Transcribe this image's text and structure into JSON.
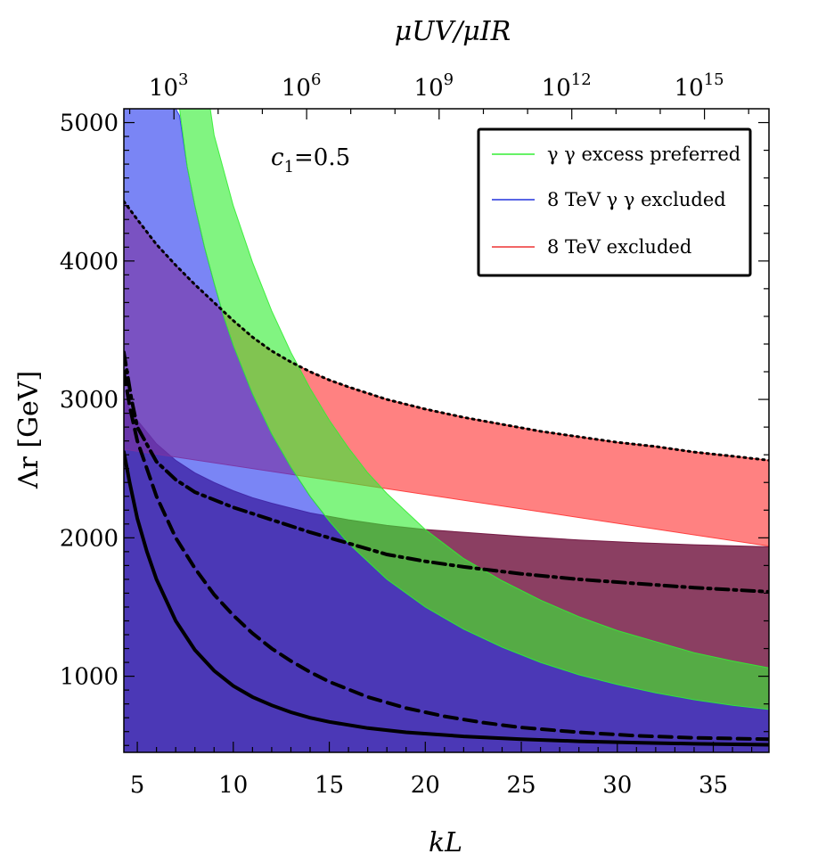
{
  "chart_data": {
    "type": "area",
    "title": "",
    "xlabel": "kL",
    "ylabel": "Λr [GeV]",
    "top_xlabel": "μUV/μIR",
    "xlim": [
      4.3,
      37.9
    ],
    "ylim": [
      450,
      5100
    ],
    "xticks": [
      5,
      10,
      15,
      20,
      25,
      30,
      35
    ],
    "yticks": [
      1000,
      2000,
      3000,
      4000,
      5000
    ],
    "top_ticks": [
      {
        "kL": 6.91,
        "base": "10",
        "exp": "3"
      },
      {
        "kL": 13.82,
        "base": "10",
        "exp": "6"
      },
      {
        "kL": 20.72,
        "base": "10",
        "exp": "9"
      },
      {
        "kL": 27.63,
        "base": "10",
        "exp": "12"
      },
      {
        "kL": 34.54,
        "base": "10",
        "exp": "15"
      }
    ],
    "annotation": {
      "text": "c1=0.5",
      "base": "c",
      "sub": "1",
      "rest": "=0.5"
    },
    "legend": {
      "position": "top-right",
      "entries": [
        {
          "label": "γ γ excess preferred",
          "color": "#33ee33"
        },
        {
          "label": "8 TeV γ γ excluded",
          "color": "#2233dd"
        },
        {
          "label": "8 TeV excluded",
          "color": "#ee3333"
        }
      ]
    },
    "regions": [
      {
        "id": "purple-band",
        "fill": "#6e0f3b",
        "opacity": 0.8,
        "upper": [
          [
            4.3,
            3000
          ],
          [
            5,
            2850
          ],
          [
            6,
            2680
          ],
          [
            7,
            2560
          ],
          [
            8,
            2470
          ],
          [
            9,
            2400
          ],
          [
            10,
            2340
          ],
          [
            11,
            2290
          ],
          [
            12,
            2250
          ],
          [
            14,
            2180
          ],
          [
            16,
            2130
          ],
          [
            18,
            2090
          ],
          [
            20,
            2060
          ],
          [
            22,
            2040
          ],
          [
            25,
            2010
          ],
          [
            28,
            1985
          ],
          [
            31,
            1965
          ],
          [
            34,
            1950
          ],
          [
            37.9,
            1935
          ]
        ],
        "lower": [
          [
            4.3,
            450
          ],
          [
            37.9,
            450
          ]
        ]
      },
      {
        "id": "8tev-excluded",
        "fill": "#ff3333",
        "opacity": 0.62,
        "upper": [
          [
            4.3,
            4430
          ],
          [
            5,
            4300
          ],
          [
            6,
            4120
          ],
          [
            7,
            3970
          ],
          [
            8,
            3830
          ],
          [
            9,
            3700
          ],
          [
            10,
            3570
          ],
          [
            11,
            3450
          ],
          [
            12,
            3350
          ],
          [
            13,
            3270
          ],
          [
            14,
            3200
          ],
          [
            15,
            3140
          ],
          [
            16,
            3090
          ],
          [
            18,
            3000
          ],
          [
            20,
            2930
          ],
          [
            22,
            2870
          ],
          [
            24,
            2820
          ],
          [
            26,
            2770
          ],
          [
            28,
            2730
          ],
          [
            30,
            2690
          ],
          [
            32,
            2660
          ],
          [
            34,
            2620
          ],
          [
            36,
            2590
          ],
          [
            37.9,
            2560
          ]
        ],
        "lower": [
          [
            4.3,
            2640
          ],
          [
            37.9,
            1940
          ]
        ]
      },
      {
        "id": "gamma-gamma-excluded",
        "fill": "#2233ee",
        "opacity": 0.6,
        "upper": [
          [
            4.3,
            5100
          ],
          [
            7,
            5100
          ],
          [
            7.2,
            5050
          ],
          [
            7.6,
            4680
          ],
          [
            8,
            4400
          ],
          [
            8.5,
            4100
          ],
          [
            9,
            3840
          ],
          [
            9.5,
            3600
          ],
          [
            10,
            3390
          ],
          [
            11,
            3040
          ],
          [
            12,
            2750
          ],
          [
            13,
            2510
          ],
          [
            14,
            2300
          ],
          [
            15,
            2120
          ],
          [
            16,
            1960
          ],
          [
            18,
            1700
          ],
          [
            20,
            1500
          ],
          [
            22,
            1340
          ],
          [
            24,
            1210
          ],
          [
            26,
            1100
          ],
          [
            28,
            1010
          ],
          [
            30,
            940
          ],
          [
            32,
            880
          ],
          [
            34,
            830
          ],
          [
            36,
            790
          ],
          [
            37.9,
            760
          ]
        ],
        "lower": [
          [
            4.3,
            450
          ],
          [
            37.9,
            450
          ]
        ]
      },
      {
        "id": "gamma-gamma-preferred",
        "fill": "#33ee33",
        "opacity": 0.62,
        "upper": [
          [
            8.8,
            5100
          ],
          [
            9,
            4910
          ],
          [
            10,
            4400
          ],
          [
            11,
            3990
          ],
          [
            12,
            3640
          ],
          [
            13,
            3340
          ],
          [
            14,
            3080
          ],
          [
            15,
            2850
          ],
          [
            16,
            2650
          ],
          [
            17,
            2470
          ],
          [
            18,
            2320
          ],
          [
            20,
            2060
          ],
          [
            22,
            1850
          ],
          [
            24,
            1690
          ],
          [
            26,
            1550
          ],
          [
            28,
            1430
          ],
          [
            30,
            1330
          ],
          [
            32,
            1250
          ],
          [
            34,
            1170
          ],
          [
            36,
            1110
          ],
          [
            37.9,
            1060
          ]
        ],
        "lower": [
          [
            7.2,
            5100
          ],
          [
            7.6,
            4680
          ],
          [
            8,
            4400
          ],
          [
            8.5,
            4100
          ],
          [
            9,
            3840
          ],
          [
            9.5,
            3600
          ],
          [
            10,
            3390
          ],
          [
            11,
            3040
          ],
          [
            12,
            2750
          ],
          [
            13,
            2510
          ],
          [
            14,
            2300
          ],
          [
            15,
            2120
          ],
          [
            16,
            1960
          ],
          [
            18,
            1700
          ],
          [
            20,
            1500
          ],
          [
            22,
            1340
          ],
          [
            24,
            1210
          ],
          [
            26,
            1100
          ],
          [
            28,
            1010
          ],
          [
            30,
            940
          ],
          [
            32,
            880
          ],
          [
            34,
            830
          ],
          [
            36,
            790
          ],
          [
            37.9,
            760
          ]
        ]
      }
    ],
    "lines": [
      {
        "id": "solid",
        "style": "solid",
        "points": [
          [
            4.3,
            2620
          ],
          [
            4.6,
            2400
          ],
          [
            5,
            2140
          ],
          [
            5.5,
            1900
          ],
          [
            6,
            1700
          ],
          [
            7,
            1400
          ],
          [
            8,
            1190
          ],
          [
            9,
            1040
          ],
          [
            10,
            930
          ],
          [
            11,
            850
          ],
          [
            12,
            790
          ],
          [
            13,
            740
          ],
          [
            14,
            700
          ],
          [
            15,
            670
          ],
          [
            17,
            625
          ],
          [
            19,
            595
          ],
          [
            22,
            565
          ],
          [
            25,
            545
          ],
          [
            28,
            530
          ],
          [
            31,
            520
          ],
          [
            34,
            512
          ],
          [
            37.9,
            505
          ]
        ]
      },
      {
        "id": "dashed",
        "style": "dashed",
        "points": [
          [
            4.3,
            3200
          ],
          [
            4.6,
            2950
          ],
          [
            5,
            2700
          ],
          [
            6,
            2300
          ],
          [
            7,
            2000
          ],
          [
            8,
            1780
          ],
          [
            9,
            1590
          ],
          [
            10,
            1440
          ],
          [
            11,
            1310
          ],
          [
            12,
            1200
          ],
          [
            13,
            1110
          ],
          [
            14,
            1030
          ],
          [
            15,
            960
          ],
          [
            17,
            850
          ],
          [
            19,
            770
          ],
          [
            21,
            710
          ],
          [
            23,
            665
          ],
          [
            25,
            630
          ],
          [
            28,
            595
          ],
          [
            31,
            570
          ],
          [
            34,
            555
          ],
          [
            37.9,
            545
          ]
        ]
      },
      {
        "id": "dash-dot",
        "style": "dashdot",
        "points": [
          [
            4.3,
            3340
          ],
          [
            4.7,
            3000
          ],
          [
            5,
            2800
          ],
          [
            6,
            2550
          ],
          [
            7,
            2420
          ],
          [
            8,
            2330
          ],
          [
            10,
            2220
          ],
          [
            12,
            2130
          ],
          [
            14,
            2040
          ],
          [
            16,
            1960
          ],
          [
            18,
            1880
          ],
          [
            20,
            1830
          ],
          [
            22,
            1790
          ],
          [
            25,
            1740
          ],
          [
            28,
            1700
          ],
          [
            31,
            1670
          ],
          [
            34,
            1640
          ],
          [
            37.9,
            1610
          ]
        ]
      },
      {
        "id": "dotted",
        "style": "dotted",
        "points": [
          [
            4.3,
            4430
          ],
          [
            5,
            4300
          ],
          [
            6,
            4120
          ],
          [
            7,
            3970
          ],
          [
            8,
            3830
          ],
          [
            9,
            3700
          ],
          [
            10,
            3570
          ],
          [
            11,
            3450
          ],
          [
            12,
            3350
          ],
          [
            13,
            3270
          ],
          [
            14,
            3200
          ],
          [
            15,
            3140
          ],
          [
            16,
            3090
          ],
          [
            18,
            3000
          ],
          [
            20,
            2930
          ],
          [
            22,
            2870
          ],
          [
            24,
            2820
          ],
          [
            26,
            2770
          ],
          [
            28,
            2730
          ],
          [
            30,
            2690
          ],
          [
            32,
            2660
          ],
          [
            34,
            2620
          ],
          [
            36,
            2590
          ],
          [
            37.9,
            2560
          ]
        ]
      }
    ]
  }
}
